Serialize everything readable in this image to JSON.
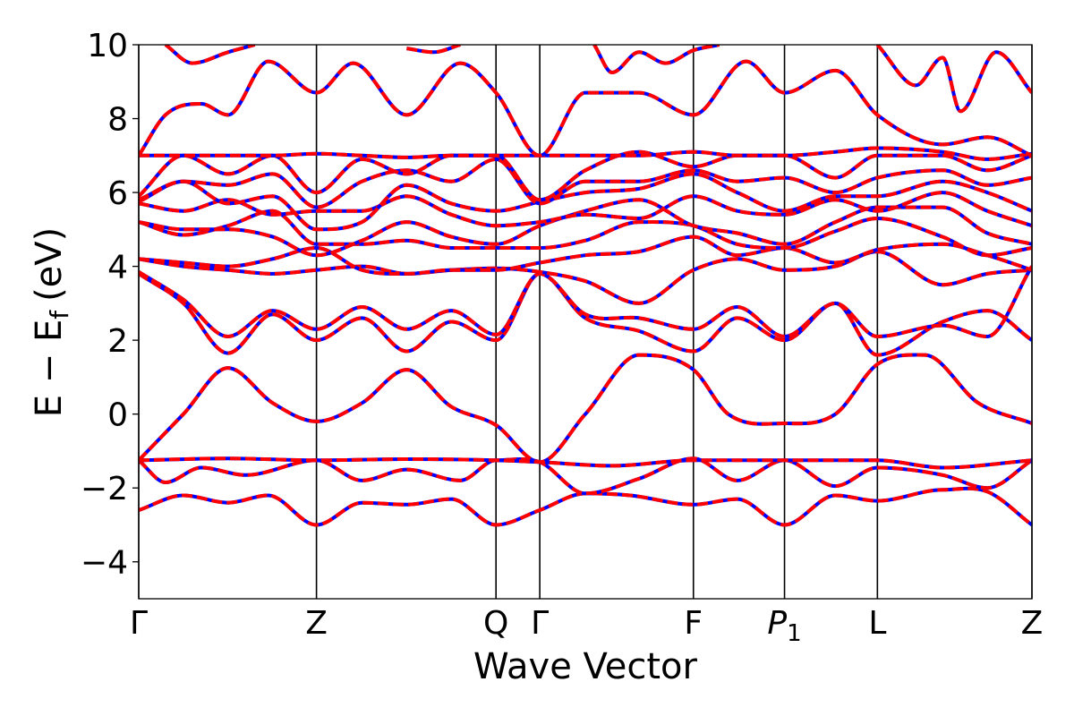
{
  "chart_data": {
    "type": "line",
    "xlabel": "Wave Vector",
    "ylabel_main": "E − E",
    "ylabel_sub": "f",
    "ylabel_unit": "(eV)",
    "ylim": [
      -5,
      10
    ],
    "yticks": [
      -4,
      -2,
      0,
      2,
      4,
      6,
      8,
      10
    ],
    "ytick_labels": [
      "−4",
      "−2",
      "0",
      "2",
      "4",
      "6",
      "8",
      "10"
    ],
    "x_range": [
      0,
      1
    ],
    "kpoints": [
      {
        "label": "Γ",
        "sub": "",
        "x": 0.0
      },
      {
        "label": "Z",
        "sub": "",
        "x": 0.199
      },
      {
        "label": "Q",
        "sub": "",
        "x": 0.4
      },
      {
        "label": "Γ",
        "sub": "",
        "x": 0.449
      },
      {
        "label": "F",
        "sub": "",
        "x": 0.621
      },
      {
        "label": "P",
        "sub": "1",
        "x": 0.723
      },
      {
        "label": "L",
        "sub": "",
        "x": 0.827
      },
      {
        "label": "Z",
        "sub": "",
        "x": 1.0
      }
    ],
    "line_styles": [
      {
        "color": "#0000ff",
        "style": "solid"
      },
      {
        "color": "#ff0000",
        "style": "dashed"
      }
    ],
    "bands": [
      [
        [
          0,
          -2.6
        ],
        [
          0.05,
          -2.2
        ],
        [
          0.1,
          -2.4
        ],
        [
          0.145,
          -2.2
        ],
        [
          0.199,
          -3.0
        ],
        [
          0.25,
          -2.4
        ],
        [
          0.3,
          -2.45
        ],
        [
          0.35,
          -2.3
        ],
        [
          0.4,
          -3.0
        ],
        [
          0.449,
          -2.6
        ],
        [
          0.5,
          -2.15
        ],
        [
          0.55,
          -2.2
        ],
        [
          0.621,
          -2.45
        ],
        [
          0.67,
          -2.3
        ],
        [
          0.723,
          -3.0
        ],
        [
          0.78,
          -2.2
        ],
        [
          0.827,
          -2.35
        ],
        [
          0.9,
          -2.05
        ],
        [
          0.95,
          -2.1
        ],
        [
          1.0,
          -3.0
        ]
      ],
      [
        [
          0,
          -1.25
        ],
        [
          0.03,
          -1.85
        ],
        [
          0.07,
          -1.45
        ],
        [
          0.12,
          -1.65
        ],
        [
          0.199,
          -1.25
        ],
        [
          0.25,
          -1.8
        ],
        [
          0.3,
          -1.5
        ],
        [
          0.36,
          -1.8
        ],
        [
          0.4,
          -1.25
        ],
        [
          0.449,
          -1.3
        ],
        [
          0.5,
          -2.15
        ],
        [
          0.56,
          -1.75
        ],
        [
          0.621,
          -1.2
        ],
        [
          0.67,
          -1.8
        ],
        [
          0.723,
          -1.25
        ],
        [
          0.78,
          -1.95
        ],
        [
          0.827,
          -1.45
        ],
        [
          0.9,
          -1.65
        ],
        [
          0.95,
          -2.0
        ],
        [
          1.0,
          -1.25
        ]
      ],
      [
        [
          0,
          -1.25
        ],
        [
          0.1,
          -1.2
        ],
        [
          0.199,
          -1.25
        ],
        [
          0.3,
          -1.22
        ],
        [
          0.4,
          -1.25
        ],
        [
          0.449,
          -1.3
        ],
        [
          0.53,
          -1.4
        ],
        [
          0.621,
          -1.25
        ],
        [
          0.723,
          -1.25
        ],
        [
          0.827,
          -1.25
        ],
        [
          0.9,
          -1.45
        ],
        [
          1.0,
          -1.25
        ]
      ],
      [
        [
          0,
          -1.25
        ],
        [
          0.05,
          0.0
        ],
        [
          0.1,
          1.25
        ],
        [
          0.15,
          0.3
        ],
        [
          0.199,
          -0.2
        ],
        [
          0.25,
          0.3
        ],
        [
          0.3,
          1.2
        ],
        [
          0.35,
          0.2
        ],
        [
          0.4,
          -0.3
        ],
        [
          0.449,
          -1.3
        ],
        [
          0.5,
          0.0
        ],
        [
          0.56,
          1.6
        ],
        [
          0.621,
          1.2
        ],
        [
          0.66,
          0.0
        ],
        [
          0.723,
          -0.25
        ],
        [
          0.78,
          0.0
        ],
        [
          0.827,
          1.35
        ],
        [
          0.88,
          1.6
        ],
        [
          0.94,
          0.3
        ],
        [
          1.0,
          -0.25
        ]
      ],
      [
        [
          0,
          3.8
        ],
        [
          0.05,
          3.0
        ],
        [
          0.1,
          1.65
        ],
        [
          0.15,
          2.7
        ],
        [
          0.199,
          2.0
        ],
        [
          0.25,
          2.6
        ],
        [
          0.3,
          1.7
        ],
        [
          0.35,
          2.5
        ],
        [
          0.4,
          2.0
        ],
        [
          0.449,
          3.8
        ],
        [
          0.5,
          2.6
        ],
        [
          0.56,
          2.25
        ],
        [
          0.621,
          1.7
        ],
        [
          0.67,
          2.6
        ],
        [
          0.723,
          2.0
        ],
        [
          0.78,
          3.0
        ],
        [
          0.827,
          1.6
        ],
        [
          0.9,
          2.5
        ],
        [
          0.95,
          2.8
        ],
        [
          1.0,
          2.0
        ]
      ],
      [
        [
          0,
          3.85
        ],
        [
          0.05,
          3.1
        ],
        [
          0.1,
          2.1
        ],
        [
          0.15,
          2.8
        ],
        [
          0.199,
          2.3
        ],
        [
          0.25,
          2.9
        ],
        [
          0.3,
          2.3
        ],
        [
          0.35,
          2.8
        ],
        [
          0.4,
          2.15
        ],
        [
          0.449,
          3.8
        ],
        [
          0.5,
          2.7
        ],
        [
          0.56,
          2.6
        ],
        [
          0.621,
          2.3
        ],
        [
          0.67,
          2.9
        ],
        [
          0.723,
          2.1
        ],
        [
          0.78,
          3.0
        ],
        [
          0.827,
          2.1
        ],
        [
          0.9,
          2.4
        ],
        [
          0.95,
          2.1
        ],
        [
          1.0,
          4.0
        ]
      ],
      [
        [
          0,
          4.2
        ],
        [
          0.05,
          4.0
        ],
        [
          0.1,
          3.9
        ],
        [
          0.15,
          3.8
        ],
        [
          0.199,
          3.9
        ],
        [
          0.25,
          4.0
        ],
        [
          0.3,
          3.8
        ],
        [
          0.35,
          3.9
        ],
        [
          0.4,
          3.95
        ],
        [
          0.449,
          3.85
        ],
        [
          0.5,
          3.6
        ],
        [
          0.56,
          3.0
        ],
        [
          0.621,
          3.9
        ],
        [
          0.67,
          4.2
        ],
        [
          0.723,
          3.9
        ],
        [
          0.78,
          4.0
        ],
        [
          0.827,
          4.4
        ],
        [
          0.9,
          3.5
        ],
        [
          0.95,
          3.8
        ],
        [
          1.0,
          3.9
        ]
      ],
      [
        [
          0,
          4.2
        ],
        [
          0.05,
          4.1
        ],
        [
          0.1,
          4.0
        ],
        [
          0.15,
          4.2
        ],
        [
          0.199,
          4.5
        ],
        [
          0.25,
          3.9
        ],
        [
          0.3,
          3.8
        ],
        [
          0.35,
          3.9
        ],
        [
          0.4,
          3.9
        ],
        [
          0.449,
          4.1
        ],
        [
          0.5,
          4.3
        ],
        [
          0.56,
          4.4
        ],
        [
          0.621,
          4.8
        ],
        [
          0.67,
          4.3
        ],
        [
          0.723,
          4.5
        ],
        [
          0.78,
          4.1
        ],
        [
          0.827,
          4.45
        ],
        [
          0.9,
          4.6
        ],
        [
          0.95,
          4.3
        ],
        [
          1.0,
          3.9
        ]
      ],
      [
        [
          0,
          5.2
        ],
        [
          0.05,
          4.85
        ],
        [
          0.1,
          5.1
        ],
        [
          0.15,
          5.5
        ],
        [
          0.199,
          4.6
        ],
        [
          0.25,
          4.6
        ],
        [
          0.3,
          4.7
        ],
        [
          0.35,
          4.5
        ],
        [
          0.4,
          4.5
        ],
        [
          0.449,
          4.5
        ],
        [
          0.5,
          4.7
        ],
        [
          0.56,
          5.2
        ],
        [
          0.621,
          5.1
        ],
        [
          0.67,
          4.6
        ],
        [
          0.723,
          4.5
        ],
        [
          0.78,
          4.95
        ],
        [
          0.827,
          5.3
        ],
        [
          0.9,
          4.8
        ],
        [
          0.95,
          4.3
        ],
        [
          1.0,
          4.5
        ]
      ],
      [
        [
          0,
          5.2
        ],
        [
          0.05,
          5.0
        ],
        [
          0.1,
          5.0
        ],
        [
          0.15,
          4.8
        ],
        [
          0.199,
          4.3
        ],
        [
          0.25,
          4.7
        ],
        [
          0.3,
          5.2
        ],
        [
          0.35,
          4.8
        ],
        [
          0.4,
          4.6
        ],
        [
          0.449,
          5.1
        ],
        [
          0.5,
          5.5
        ],
        [
          0.56,
          5.8
        ],
        [
          0.621,
          5.1
        ],
        [
          0.67,
          4.9
        ],
        [
          0.723,
          4.6
        ],
        [
          0.78,
          5.2
        ],
        [
          0.827,
          5.6
        ],
        [
          0.9,
          5.6
        ],
        [
          0.95,
          4.9
        ],
        [
          1.0,
          4.6
        ]
      ],
      [
        [
          0,
          5.7
        ],
        [
          0.05,
          5.5
        ],
        [
          0.1,
          5.8
        ],
        [
          0.15,
          5.4
        ],
        [
          0.199,
          5.5
        ],
        [
          0.25,
          5.5
        ],
        [
          0.3,
          5.9
        ],
        [
          0.35,
          5.4
        ],
        [
          0.4,
          5.1
        ],
        [
          0.449,
          5.2
        ],
        [
          0.5,
          5.4
        ],
        [
          0.56,
          5.3
        ],
        [
          0.621,
          5.9
        ],
        [
          0.67,
          5.5
        ],
        [
          0.723,
          5.4
        ],
        [
          0.78,
          5.8
        ],
        [
          0.827,
          5.5
        ],
        [
          0.9,
          6.0
        ],
        [
          0.95,
          5.5
        ],
        [
          1.0,
          5.1
        ]
      ],
      [
        [
          0,
          5.75
        ],
        [
          0.05,
          6.3
        ],
        [
          0.1,
          5.7
        ],
        [
          0.15,
          5.9
        ],
        [
          0.199,
          5.0
        ],
        [
          0.25,
          5.2
        ],
        [
          0.3,
          6.2
        ],
        [
          0.35,
          5.7
        ],
        [
          0.4,
          5.5
        ],
        [
          0.449,
          5.75
        ],
        [
          0.5,
          6.0
        ],
        [
          0.56,
          6.1
        ],
        [
          0.621,
          6.5
        ],
        [
          0.67,
          6.0
        ],
        [
          0.723,
          5.5
        ],
        [
          0.78,
          5.9
        ],
        [
          0.827,
          5.9
        ],
        [
          0.9,
          6.3
        ],
        [
          0.95,
          6.0
        ],
        [
          1.0,
          5.5
        ]
      ],
      [
        [
          0,
          5.8
        ],
        [
          0.05,
          6.3
        ],
        [
          0.1,
          6.2
        ],
        [
          0.15,
          6.5
        ],
        [
          0.199,
          5.6
        ],
        [
          0.25,
          6.3
        ],
        [
          0.3,
          6.6
        ],
        [
          0.35,
          6.3
        ],
        [
          0.4,
          6.9
        ],
        [
          0.449,
          5.7
        ],
        [
          0.5,
          6.3
        ],
        [
          0.56,
          6.3
        ],
        [
          0.621,
          6.6
        ],
        [
          0.67,
          6.3
        ],
        [
          0.723,
          6.4
        ],
        [
          0.78,
          6.0
        ],
        [
          0.827,
          6.4
        ],
        [
          0.9,
          6.6
        ],
        [
          0.95,
          6.2
        ],
        [
          1.0,
          6.4
        ]
      ],
      [
        [
          0,
          5.9
        ],
        [
          0.05,
          7.0
        ],
        [
          0.1,
          6.5
        ],
        [
          0.15,
          7.0
        ],
        [
          0.199,
          6.0
        ],
        [
          0.25,
          6.9
        ],
        [
          0.3,
          6.5
        ],
        [
          0.35,
          7.0
        ],
        [
          0.4,
          7.0
        ],
        [
          0.449,
          5.8
        ],
        [
          0.5,
          6.6
        ],
        [
          0.56,
          7.1
        ],
        [
          0.621,
          6.7
        ],
        [
          0.67,
          7.0
        ],
        [
          0.723,
          7.0
        ],
        [
          0.78,
          6.4
        ],
        [
          0.827,
          7.0
        ],
        [
          0.9,
          7.0
        ],
        [
          0.95,
          6.6
        ],
        [
          1.0,
          7.0
        ]
      ],
      [
        [
          0,
          7.0
        ],
        [
          0.05,
          7.0
        ],
        [
          0.1,
          7.0
        ],
        [
          0.15,
          7.0
        ],
        [
          0.199,
          7.05
        ],
        [
          0.25,
          7.0
        ],
        [
          0.3,
          6.95
        ],
        [
          0.35,
          7.0
        ],
        [
          0.4,
          7.0
        ],
        [
          0.449,
          7.0
        ],
        [
          0.5,
          7.0
        ],
        [
          0.56,
          7.0
        ],
        [
          0.621,
          7.1
        ],
        [
          0.67,
          7.0
        ],
        [
          0.723,
          7.0
        ],
        [
          0.78,
          7.1
        ],
        [
          0.827,
          7.2
        ],
        [
          0.9,
          7.1
        ],
        [
          0.95,
          6.9
        ],
        [
          1.0,
          7.05
        ]
      ],
      [
        [
          0,
          7.0
        ],
        [
          0.03,
          8.1
        ],
        [
          0.07,
          8.4
        ],
        [
          0.1,
          8.1
        ],
        [
          0.145,
          9.55
        ],
        [
          0.199,
          8.7
        ],
        [
          0.24,
          9.5
        ],
        [
          0.3,
          8.1
        ],
        [
          0.36,
          9.5
        ],
        [
          0.4,
          8.7
        ],
        [
          0.449,
          7.0
        ],
        [
          0.5,
          8.7
        ],
        [
          0.56,
          8.7
        ],
        [
          0.621,
          8.1
        ],
        [
          0.68,
          9.55
        ],
        [
          0.723,
          8.7
        ],
        [
          0.78,
          9.3
        ],
        [
          0.827,
          8.1
        ],
        [
          0.9,
          7.3
        ],
        [
          0.95,
          7.5
        ],
        [
          1.0,
          7.0
        ]
      ],
      [
        [
          0.03,
          10.0
        ],
        [
          0.06,
          9.5
        ],
        [
          0.1,
          9.8
        ],
        [
          0.13,
          10.0
        ]
      ],
      [
        [
          0.3,
          9.9
        ],
        [
          0.33,
          9.8
        ],
        [
          0.36,
          10.0
        ]
      ],
      [
        [
          0.51,
          10.0
        ],
        [
          0.53,
          9.25
        ],
        [
          0.56,
          9.8
        ],
        [
          0.59,
          9.5
        ],
        [
          0.621,
          9.85
        ],
        [
          0.65,
          10.0
        ]
      ],
      [
        [
          0.827,
          10.0
        ],
        [
          0.87,
          8.9
        ],
        [
          0.9,
          9.65
        ],
        [
          0.92,
          8.2
        ],
        [
          0.96,
          9.8
        ],
        [
          1.0,
          8.7
        ]
      ]
    ]
  }
}
